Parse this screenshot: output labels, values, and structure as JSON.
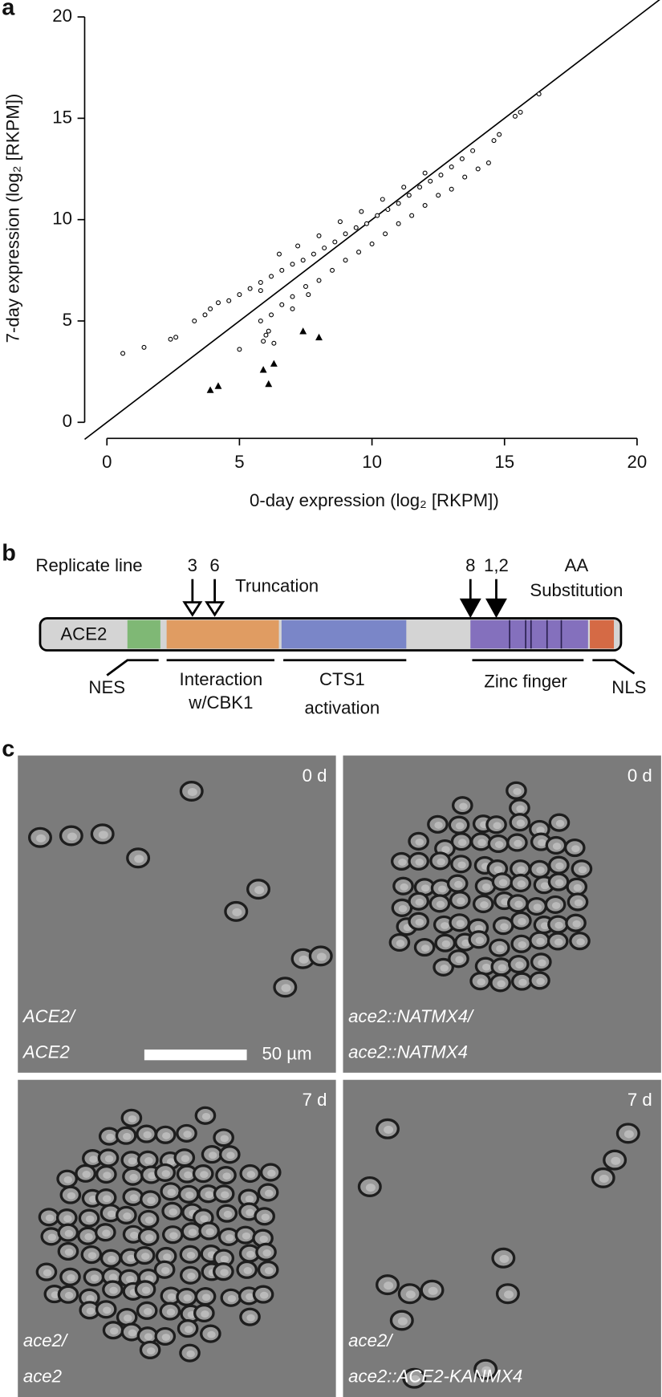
{
  "chart_data": {
    "type": "scatter",
    "xlabel": "0-day expression (log₂ [RKPM])",
    "ylabel": "7-day expression (log₂ [RKPM])",
    "xlim": [
      0,
      20
    ],
    "ylim": [
      0,
      20
    ],
    "xticks": [
      0,
      5,
      10,
      15,
      20
    ],
    "yticks": [
      0,
      5,
      10,
      15,
      20
    ],
    "diagonal": true,
    "series": [
      {
        "marker": "circle",
        "color": "#000000",
        "x": [
          0.6,
          1.4,
          2.4,
          2.6,
          3.3,
          3.7,
          3.9,
          4.2,
          4.6,
          5.0,
          5.4,
          5.8,
          6.2,
          6.6,
          7.0,
          7.4,
          7.8,
          8.2,
          8.6,
          9.0,
          9.4,
          9.8,
          10.2,
          10.6,
          11.0,
          11.4,
          11.8,
          12.2,
          12.6,
          13.0,
          13.4,
          13.8,
          6.5,
          7.2,
          8.0,
          8.8,
          9.6,
          10.4,
          11.2,
          12.0,
          5.8,
          5.8,
          6.2,
          6.6,
          7.0,
          7.5,
          8.0,
          8.5,
          9.0,
          9.5,
          10.0,
          10.5,
          11.0,
          11.5,
          12.0,
          12.5,
          13.0,
          13.5,
          14.0,
          14.4,
          14.6,
          14.8,
          15.4,
          15.6,
          16.3,
          5.0,
          5.9,
          6.1,
          6.3,
          7.0,
          7.6,
          6.0
        ],
        "values": [
          3.4,
          3.7,
          4.1,
          4.2,
          5.0,
          5.3,
          5.6,
          5.9,
          6.0,
          6.3,
          6.6,
          6.9,
          7.2,
          7.5,
          7.8,
          8.0,
          8.3,
          8.6,
          8.9,
          9.3,
          9.6,
          9.8,
          10.2,
          10.5,
          10.8,
          11.2,
          11.6,
          11.9,
          12.2,
          12.6,
          13.0,
          13.4,
          8.3,
          8.7,
          9.2,
          9.9,
          10.4,
          11.0,
          11.6,
          12.3,
          6.5,
          5.0,
          5.3,
          5.8,
          6.2,
          6.7,
          7.0,
          7.5,
          8.0,
          8.4,
          8.8,
          9.3,
          9.8,
          10.2,
          10.7,
          11.2,
          11.5,
          12.1,
          12.5,
          12.8,
          13.9,
          14.2,
          15.1,
          15.3,
          16.2,
          3.6,
          4.0,
          4.5,
          3.9,
          5.6,
          6.3,
          4.3
        ]
      },
      {
        "marker": "triangle",
        "color": "#000000",
        "x": [
          3.9,
          4.2,
          5.9,
          6.3,
          6.1,
          7.4,
          8.0
        ],
        "values": [
          1.6,
          1.8,
          2.6,
          2.9,
          1.9,
          4.5,
          4.2
        ]
      }
    ]
  },
  "panel_labels": [
    "a",
    "b",
    "c"
  ],
  "diagram": {
    "replicate_line": "Replicate line",
    "truncation": "Truncation",
    "truncation_lines": [
      "3",
      "6"
    ],
    "substitution_lines": [
      "8",
      "1,2"
    ],
    "substitution": [
      "AA",
      "Substitution"
    ],
    "protein": "ACE2",
    "domains": [
      [
        "NES"
      ],
      [
        "Interaction",
        "w/CBK1"
      ],
      [
        "CTS1",
        "activation"
      ],
      [
        "Zinc finger"
      ],
      [
        "NLS"
      ]
    ]
  },
  "micrographs": {
    "panels": [
      {
        "time": "0 d",
        "genotype": [
          "ACE2/",
          "ACE2"
        ]
      },
      {
        "time": "0 d",
        "genotype": [
          "ace2::NATMX4/",
          "ace2::NATMX4"
        ]
      },
      {
        "time": "7 d",
        "genotype": [
          "ace2/",
          "ace2"
        ]
      },
      {
        "time": "7 d",
        "genotype": [
          "ace2/",
          "ace2::ACE2-KANMX4"
        ]
      }
    ],
    "scale_bar": "50 µm"
  }
}
